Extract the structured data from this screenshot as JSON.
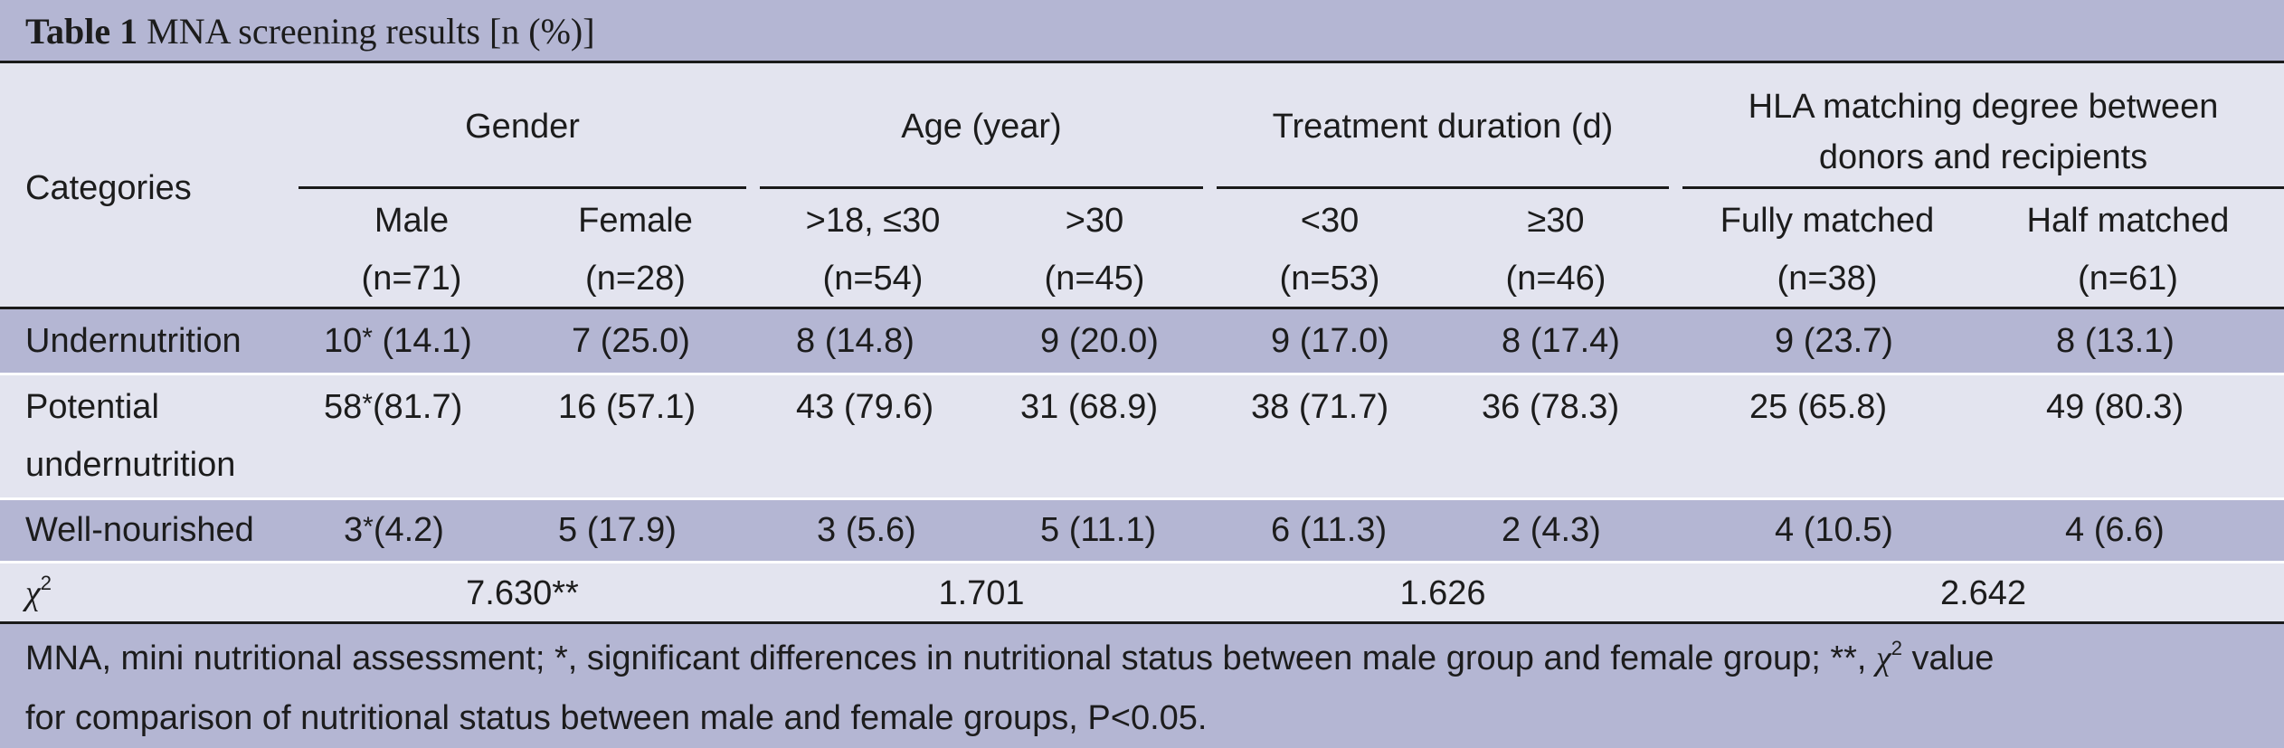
{
  "title": {
    "bold": "Table 1",
    "text": "MNA screening results [n (%)]"
  },
  "header": {
    "categories": "Categories",
    "groups": [
      {
        "label": "Gender"
      },
      {
        "label": "Age (year)"
      },
      {
        "label": "Treatment duration (d)"
      },
      {
        "label_line1": "HLA matching degree between",
        "label_line2": "donors and recipients"
      }
    ],
    "subheads": [
      {
        "label": "Male",
        "n": "(n=71)"
      },
      {
        "label": "Female",
        "n": "(n=28)"
      },
      {
        "label": ">18, ≤30",
        "n": "(n=54)"
      },
      {
        "label": ">30",
        "n": "(n=45)"
      },
      {
        "label": "<30",
        "n": "(n=53)"
      },
      {
        "label": "≥30",
        "n": "(n=46)"
      },
      {
        "label": "Fully matched",
        "n": "(n=38)"
      },
      {
        "label": "Half matched",
        "n": "(n=61)"
      }
    ]
  },
  "rows": [
    {
      "label": "Undernutrition",
      "male_value": "10",
      "male_pct": "(14.1)",
      "cells": [
        "7 (25.0)",
        "8 (14.8)",
        "9 (20.0)",
        "9 (17.0)",
        "8 (17.4)",
        "9 (23.7)",
        "8 (13.1)"
      ]
    },
    {
      "label_line1": "Potential",
      "label_line2": "undernutrition",
      "male_value": "58",
      "male_pct": "(81.7)",
      "cells": [
        "16 (57.1)",
        "43 (79.6)",
        "31 (68.9)",
        "38 (71.7)",
        "36 (78.3)",
        "25 (65.8)",
        "49 (80.3)"
      ]
    },
    {
      "label": "Well-nourished",
      "male_value": "3",
      "male_pct": "(4.2)",
      "cells": [
        "5 (17.9)",
        "3 (5.6)",
        "5 (11.1)",
        "6 (11.3)",
        "2 (4.3)",
        "4 (10.5)",
        "4 (6.6)"
      ]
    }
  ],
  "chi_row": {
    "symbol": "χ",
    "sup": "2",
    "values": [
      "7.630**",
      "1.701",
      "1.626",
      "2.642"
    ]
  },
  "star": "*",
  "note": {
    "line1_a": "MNA, mini nutritional assessment; *, significant differences in nutritional status between male group and female group; **, ",
    "chi": "χ",
    "sup": "2",
    "line1_b": " value",
    "line2": "for comparison of nutritional status between male and female groups, P<0.05."
  }
}
